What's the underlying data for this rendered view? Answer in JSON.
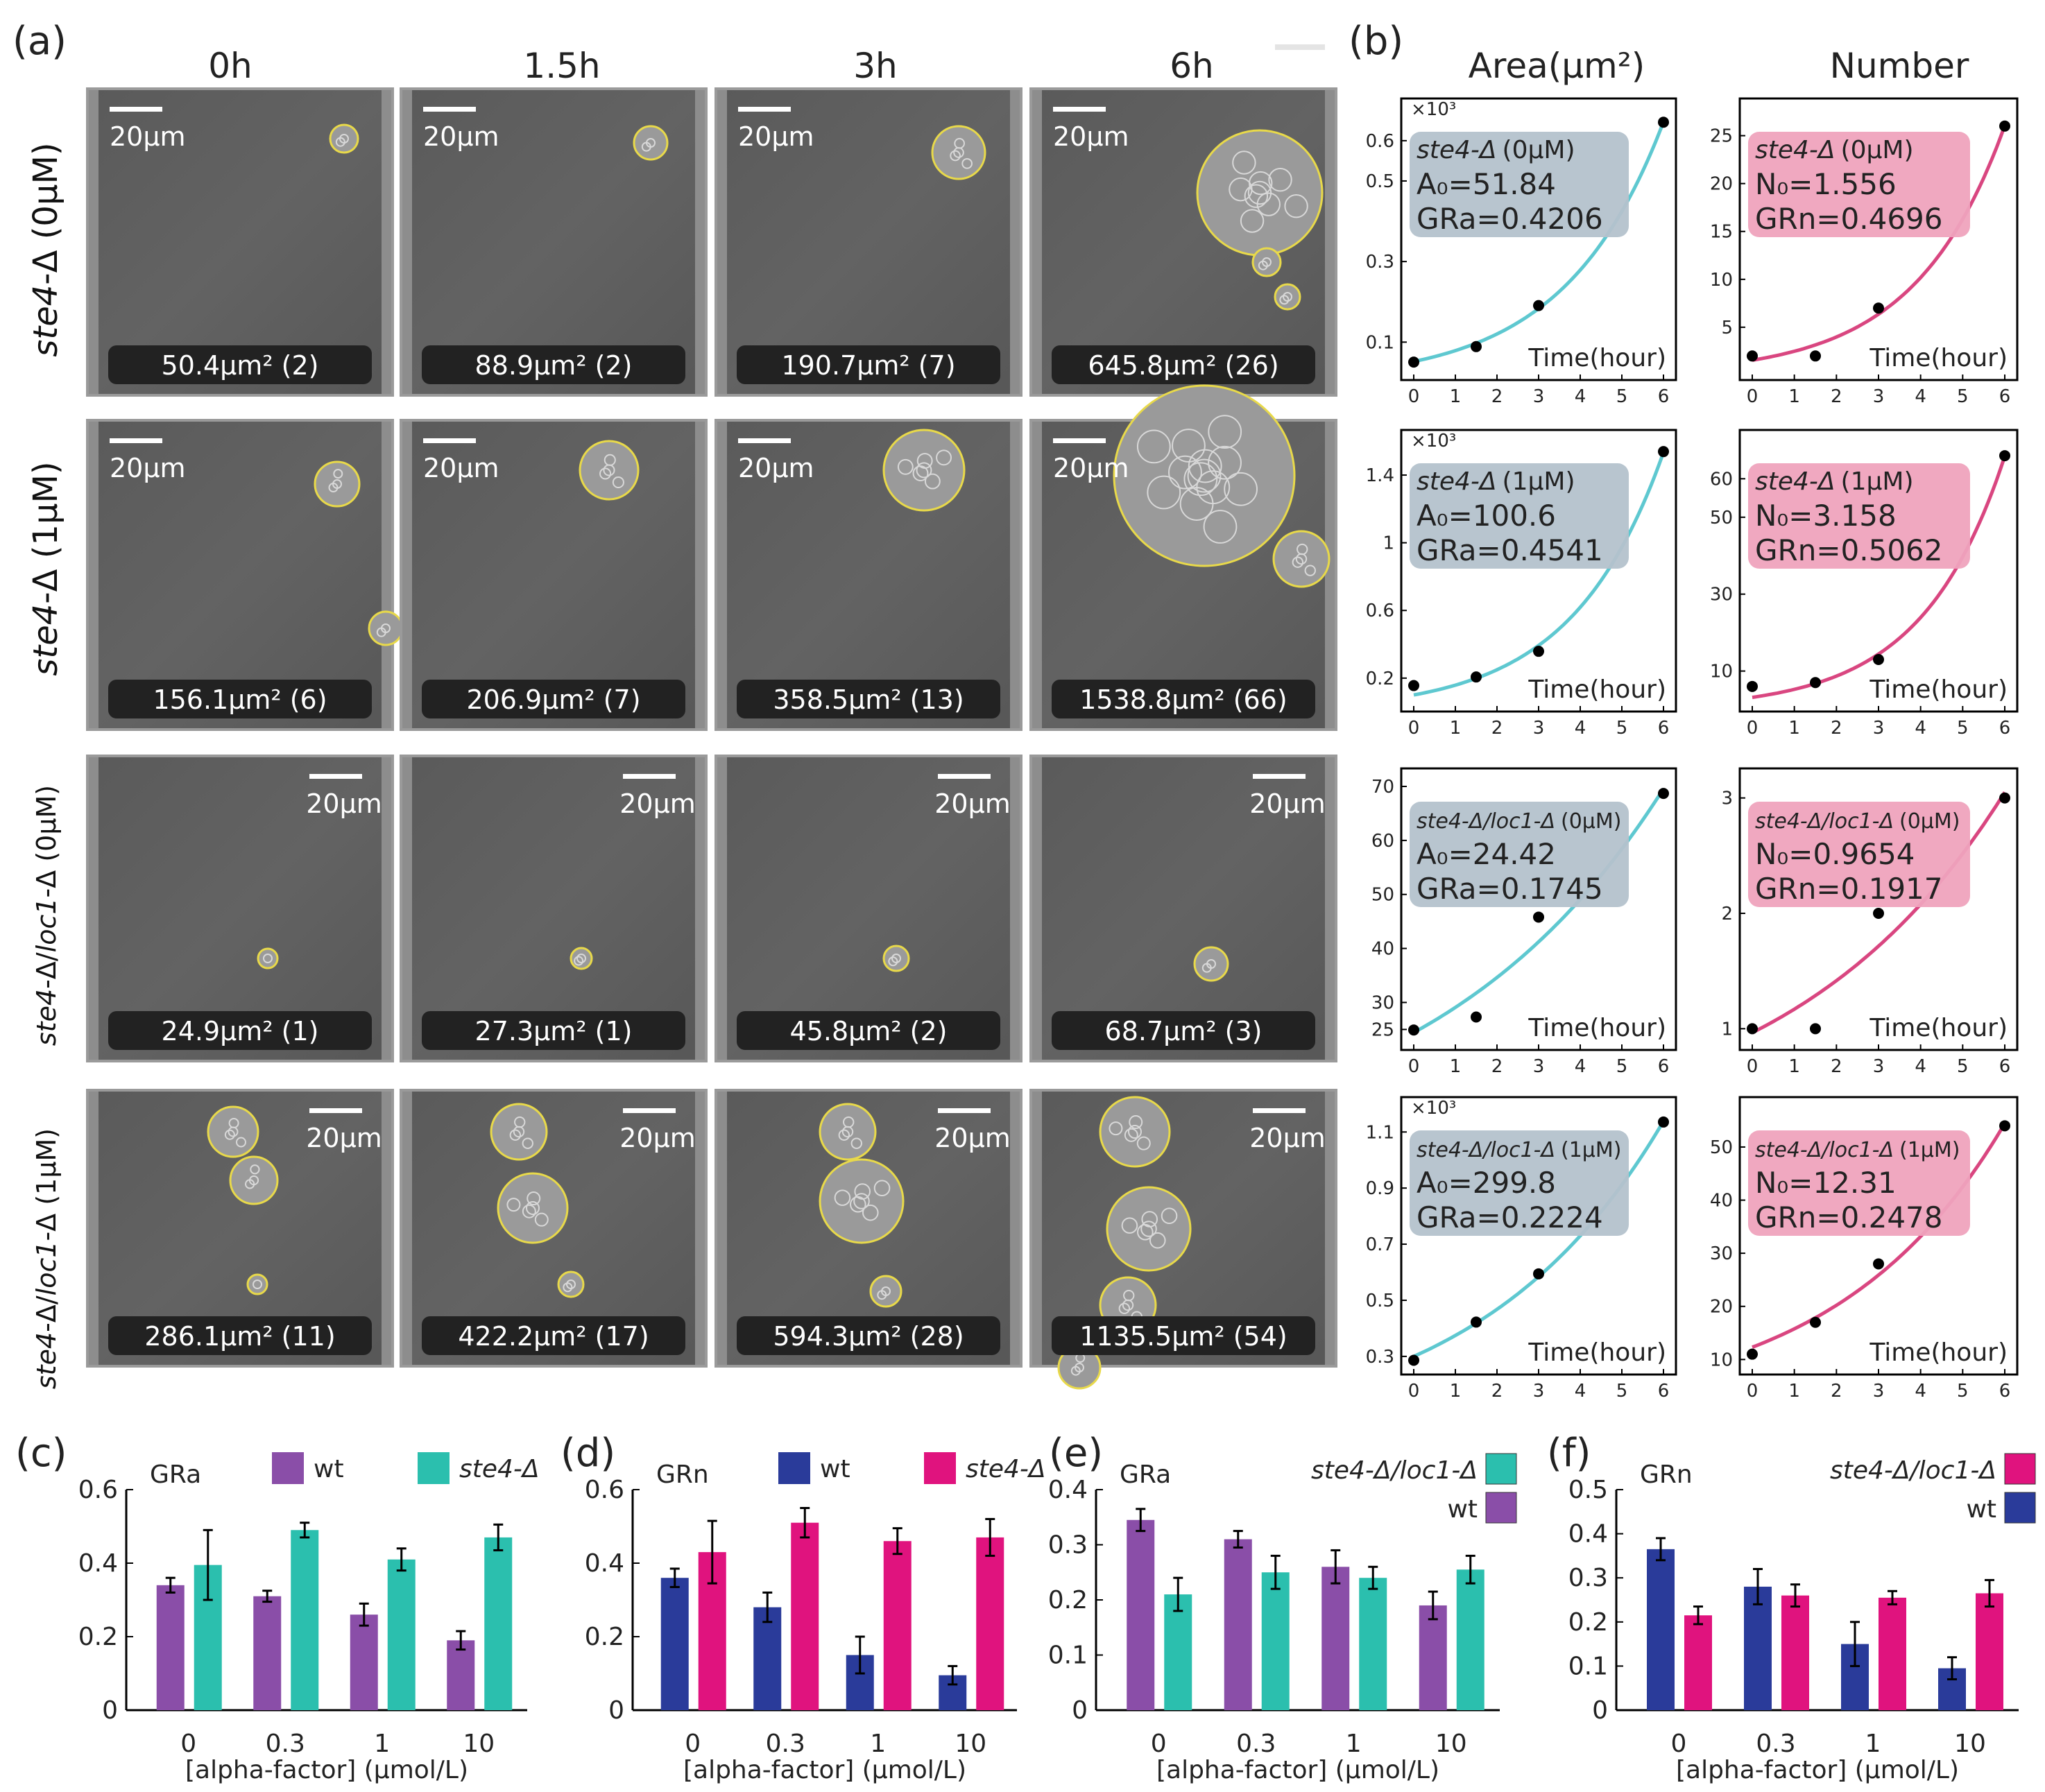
{
  "panel_letters": {
    "a": "(a)",
    "b": "(b)",
    "c": "(c)",
    "d": "(d)",
    "e": "(e)",
    "f": "(f)"
  },
  "time_headers": [
    "0h",
    "1.5h",
    "3h",
    "6h"
  ],
  "column_headers": {
    "area": "Area(μm²)",
    "number": "Number"
  },
  "row_labels": [
    {
      "strain": "ste4",
      "rest": "-Δ (0μM)"
    },
    {
      "strain": "ste4",
      "rest": "-Δ (1μM)"
    },
    {
      "strain": "ste4",
      "mid": "-Δ/",
      "strain2": "loc1",
      "rest": "-Δ (0μM)"
    },
    {
      "strain": "ste4",
      "mid": "-Δ/",
      "strain2": "loc1",
      "rest": "-Δ (1μM)"
    }
  ],
  "scale_bar": "20μm",
  "captions": [
    [
      "50.4μm² (2)",
      "88.9μm² (2)",
      "190.7μm² (7)",
      "645.8μm² (26)"
    ],
    [
      "156.1μm² (6)",
      "206.9μm² (7)",
      "358.5μm² (13)",
      "1538.8μm² (66)"
    ],
    [
      "24.9μm² (1)",
      "27.3μm² (1)",
      "45.8μm² (2)",
      "68.7μm² (3)"
    ],
    [
      "286.1μm² (11)",
      "422.2μm² (17)",
      "594.3μm² (28)",
      "1135.5μm² (54)"
    ]
  ],
  "fit_plots": {
    "time_label": "Time(hour)",
    "x_ticks": [
      "0",
      "1",
      "2",
      "3",
      "4",
      "5",
      "6"
    ],
    "multiplier": "×10³",
    "area": [
      {
        "strain": "ste4-Δ",
        "cond": "(0μM)",
        "p0": "A₀=51.84",
        "gr": "GRa=0.4206",
        "scaled": true,
        "yticks": [
          "0.1",
          "0.3",
          "0.5",
          "0.6"
        ],
        "a0": 51.84,
        "r": 0.4206,
        "ymin": 30,
        "ymax": 660,
        "points": [
          [
            0,
            50.4
          ],
          [
            1.5,
            88.9
          ],
          [
            3,
            190.7
          ],
          [
            6,
            645.8
          ]
        ]
      },
      {
        "strain": "ste4-Δ",
        "cond": "(1μM)",
        "p0": "A₀=100.6",
        "gr": "GRa=0.4541",
        "scaled": true,
        "yticks": [
          "0.2",
          "0.6",
          "1",
          "1.4"
        ],
        "a0": 100.6,
        "r": 0.4541,
        "ymin": 60,
        "ymax": 1560,
        "points": [
          [
            0,
            156.1
          ],
          [
            1.5,
            206.9
          ],
          [
            3,
            358.5
          ],
          [
            6,
            1538.8
          ]
        ]
      },
      {
        "strain": "ste4-Δ/loc1-Δ",
        "cond": "(0μM)",
        "p0": "A₀=24.42",
        "gr": "GRa=0.1745",
        "scaled": false,
        "yticks": [
          "25",
          "30",
          "40",
          "50",
          "60",
          "70"
        ],
        "a0": 24.42,
        "r": 0.1745,
        "ymin": 23,
        "ymax": 70,
        "points": [
          [
            0,
            24.9
          ],
          [
            1.5,
            27.3
          ],
          [
            3,
            45.8
          ],
          [
            6,
            68.7
          ]
        ]
      },
      {
        "strain": "ste4-Δ/loc1-Δ",
        "cond": "(1μM)",
        "p0": "A₀=299.8",
        "gr": "GRa=0.2224",
        "scaled": true,
        "yticks": [
          "0.3",
          "0.5",
          "0.7",
          "0.9",
          "1.1"
        ],
        "a0": 299.8,
        "r": 0.2224,
        "ymin": 270,
        "ymax": 1160,
        "points": [
          [
            0,
            286.1
          ],
          [
            1.5,
            422.2
          ],
          [
            3,
            594.3
          ],
          [
            6,
            1135.5
          ]
        ]
      }
    ],
    "number": [
      {
        "strain": "ste4-Δ",
        "cond": "(0μM)",
        "p0": "N₀=1.556",
        "gr": "GRn=0.4696",
        "yticks": [
          "5",
          "10",
          "15",
          "20",
          "25"
        ],
        "a0": 1.556,
        "r": 0.4696,
        "ymin": 0.5,
        "ymax": 27,
        "points": [
          [
            0,
            2
          ],
          [
            1.5,
            2
          ],
          [
            3,
            7
          ],
          [
            6,
            26
          ]
        ]
      },
      {
        "strain": "ste4-Δ",
        "cond": "(1μM)",
        "p0": "N₀=3.158",
        "gr": "GRn=0.5062",
        "yticks": [
          "10",
          "30",
          "50",
          "60"
        ],
        "a0": 3.158,
        "r": 0.5062,
        "ymin": 2,
        "ymax": 68,
        "points": [
          [
            0,
            6
          ],
          [
            1.5,
            7
          ],
          [
            3,
            13
          ],
          [
            6,
            66
          ]
        ]
      },
      {
        "strain": "ste4-Δ/loc1-Δ",
        "cond": "(0μM)",
        "p0": "N₀=0.9654",
        "gr": "GRn=0.1917",
        "yticks": [
          "1",
          "2",
          "3"
        ],
        "a0": 0.9654,
        "r": 0.1917,
        "ymin": 0.9,
        "ymax": 3.1,
        "points": [
          [
            0,
            1
          ],
          [
            1.5,
            1
          ],
          [
            3,
            2
          ],
          [
            6,
            3
          ]
        ]
      },
      {
        "strain": "ste4-Δ/loc1-Δ",
        "cond": "(1μM)",
        "p0": "N₀=12.31",
        "gr": "GRn=0.2478",
        "yticks": [
          "10",
          "20",
          "30",
          "40",
          "50"
        ],
        "a0": 12.31,
        "r": 0.2478,
        "ymin": 9,
        "ymax": 56,
        "points": [
          [
            0,
            11
          ],
          [
            1.5,
            17
          ],
          [
            3,
            28
          ],
          [
            6,
            54
          ]
        ]
      }
    ]
  },
  "bar_axis_label": "[alpha-factor] (μmol/L)",
  "chart_data": [
    {
      "type": "bar",
      "id": "c",
      "title": "GRa",
      "xlabel": "[alpha-factor] (μmol/L)",
      "ylabel": "",
      "categories": [
        "0",
        "0.3",
        "1",
        "10"
      ],
      "ylim": [
        0,
        0.6
      ],
      "yticks": [
        "0",
        "0.2",
        "0.4",
        "0.6"
      ],
      "series": [
        {
          "name": "wt",
          "color": "#8a4ea8",
          "values": [
            0.34,
            0.31,
            0.26,
            0.19
          ],
          "err": [
            0.02,
            0.015,
            0.03,
            0.025
          ]
        },
        {
          "name": "ste4-Δ",
          "color": "#2bbfae",
          "values": [
            0.395,
            0.49,
            0.41,
            0.47
          ],
          "err": [
            0.095,
            0.02,
            0.03,
            0.035
          ]
        }
      ]
    },
    {
      "type": "bar",
      "id": "d",
      "title": "GRn",
      "xlabel": "[alpha-factor] (μmol/L)",
      "ylabel": "",
      "categories": [
        "0",
        "0.3",
        "1",
        "10"
      ],
      "ylim": [
        0,
        0.6
      ],
      "yticks": [
        "0",
        "0.2",
        "0.4",
        "0.6"
      ],
      "series": [
        {
          "name": "wt",
          "color": "#2a3b9a",
          "values": [
            0.36,
            0.28,
            0.15,
            0.095
          ],
          "err": [
            0.025,
            0.04,
            0.05,
            0.025
          ]
        },
        {
          "name": "ste4-Δ",
          "color": "#e0137e",
          "values": [
            0.43,
            0.51,
            0.46,
            0.47
          ],
          "err": [
            0.085,
            0.04,
            0.035,
            0.05
          ]
        }
      ]
    },
    {
      "type": "bar",
      "id": "e",
      "title": "GRa",
      "xlabel": "[alpha-factor] (μmol/L)",
      "ylabel": "",
      "categories": [
        "0",
        "0.3",
        "1",
        "10"
      ],
      "ylim": [
        0,
        0.4
      ],
      "yticks": [
        "0",
        "0.1",
        "0.2",
        "0.3",
        "0.4"
      ],
      "series": [
        {
          "name": "wt",
          "color": "#8a4ea8",
          "values": [
            0.345,
            0.31,
            0.26,
            0.19
          ],
          "err": [
            0.02,
            0.015,
            0.03,
            0.025
          ]
        },
        {
          "name": "ste4-Δ/loc1-Δ",
          "color": "#2bbfae",
          "values": [
            0.21,
            0.25,
            0.24,
            0.255
          ],
          "err": [
            0.03,
            0.03,
            0.02,
            0.025
          ]
        }
      ]
    },
    {
      "type": "bar",
      "id": "f",
      "title": "GRn",
      "xlabel": "[alpha-factor] (μmol/L)",
      "ylabel": "",
      "categories": [
        "0",
        "0.3",
        "1",
        "10"
      ],
      "ylim": [
        0,
        0.5
      ],
      "yticks": [
        "0",
        "0.1",
        "0.2",
        "0.3",
        "0.4",
        "0.5"
      ],
      "series": [
        {
          "name": "wt",
          "color": "#2a3b9a",
          "values": [
            0.365,
            0.28,
            0.15,
            0.095
          ],
          "err": [
            0.025,
            0.04,
            0.05,
            0.025
          ]
        },
        {
          "name": "ste4-Δ/loc1-Δ",
          "color": "#e0137e",
          "values": [
            0.215,
            0.26,
            0.255,
            0.265
          ],
          "err": [
            0.02,
            0.025,
            0.015,
            0.03
          ]
        }
      ]
    }
  ]
}
